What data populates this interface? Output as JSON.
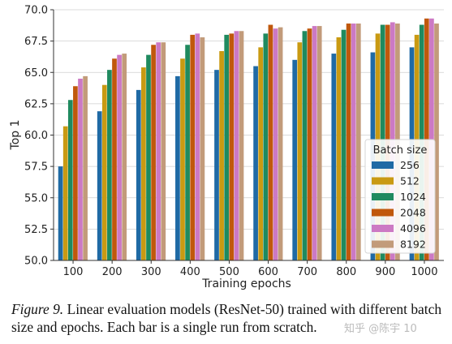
{
  "chart_data": {
    "type": "bar",
    "title": "",
    "xlabel": "Training epochs",
    "ylabel": "Top 1",
    "categories": [
      "100",
      "200",
      "300",
      "400",
      "500",
      "600",
      "700",
      "800",
      "900",
      "1000"
    ],
    "ylim": [
      50.0,
      70.0
    ],
    "yticks": [
      "50.0",
      "52.5",
      "55.0",
      "57.5",
      "60.0",
      "62.5",
      "65.0",
      "67.5",
      "70.0"
    ],
    "grid": "horizontal",
    "legend": {
      "title": "Batch size",
      "placement": "right"
    },
    "series": [
      {
        "name": "256",
        "color": "#1f6aa5",
        "values": [
          57.5,
          61.9,
          63.6,
          64.7,
          65.2,
          65.5,
          66.0,
          66.5,
          66.6,
          67.0
        ]
      },
      {
        "name": "512",
        "color": "#c99a12",
        "values": [
          60.7,
          64.0,
          65.4,
          66.1,
          66.7,
          67.0,
          67.4,
          67.8,
          68.1,
          68.0
        ]
      },
      {
        "name": "1024",
        "color": "#1f8a5f",
        "values": [
          62.8,
          65.2,
          66.4,
          67.2,
          68.0,
          68.1,
          68.3,
          68.4,
          68.8,
          68.8
        ]
      },
      {
        "name": "2048",
        "color": "#c0580c",
        "values": [
          63.9,
          66.1,
          67.2,
          68.0,
          68.1,
          68.8,
          68.5,
          68.9,
          68.8,
          69.3
        ]
      },
      {
        "name": "4096",
        "color": "#cc79c4",
        "values": [
          64.5,
          66.4,
          67.4,
          68.1,
          68.3,
          68.5,
          68.7,
          68.9,
          69.0,
          69.3
        ]
      },
      {
        "name": "8192",
        "color": "#c29b7a",
        "values": [
          64.7,
          66.5,
          67.4,
          67.8,
          68.3,
          68.6,
          68.7,
          68.9,
          68.9,
          68.9
        ]
      }
    ]
  },
  "caption": {
    "figure_label": "Figure 9.",
    "text": " Linear evaluation models (ResNet-50) trained with different batch size and epochs. Each bar is a single run from scratch."
  },
  "watermark": "知乎 @陈宇 10"
}
